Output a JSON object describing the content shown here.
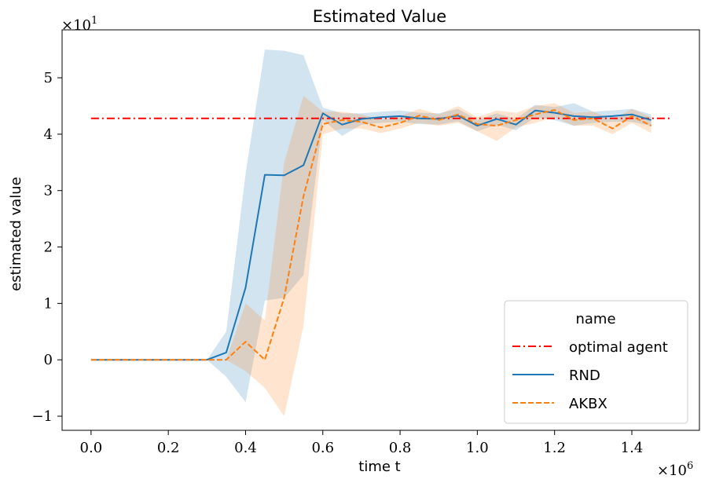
{
  "chart_data": {
    "type": "line",
    "title": "Estimated Value",
    "xlabel": "time t",
    "ylabel": "estimated value",
    "x_multiplier": "×10",
    "x_multiplier_exp": "6",
    "y_multiplier": "×10",
    "y_multiplier_exp": "1",
    "xlim": [
      -0.075,
      1.575
    ],
    "ylim": [
      -1.25,
      5.85
    ],
    "xticks": [
      0.0,
      0.2,
      0.4,
      0.6,
      0.8,
      1.0,
      1.2,
      1.4
    ],
    "xtick_labels": [
      "0.0",
      "0.2",
      "0.4",
      "0.6",
      "0.8",
      "1.0",
      "1.2",
      "1.4"
    ],
    "yticks": [
      -1,
      0,
      1,
      2,
      3,
      4,
      5
    ],
    "ytick_labels": [
      "−1",
      "0",
      "1",
      "2",
      "3",
      "4",
      "5"
    ],
    "grid": false,
    "legend": {
      "title": "name",
      "placement": "lower-right",
      "entries": [
        "optimal agent",
        "RND",
        "AKBX"
      ]
    },
    "x": [
      0.0,
      0.05,
      0.1,
      0.15,
      0.2,
      0.25,
      0.3,
      0.35,
      0.4,
      0.45,
      0.5,
      0.55,
      0.6,
      0.65,
      0.7,
      0.75,
      0.8,
      0.85,
      0.9,
      0.95,
      1.0,
      1.05,
      1.1,
      1.15,
      1.2,
      1.25,
      1.3,
      1.35,
      1.4,
      1.45
    ],
    "series": [
      {
        "name": "optimal agent",
        "color": "#ff0000",
        "style": "dashdot",
        "x": [
          0.0,
          1.5
        ],
        "values": [
          4.28,
          4.28
        ]
      },
      {
        "name": "RND",
        "color": "#1f77b4",
        "style": "solid",
        "values": [
          0,
          0,
          0,
          0,
          0,
          0,
          0,
          0.13,
          1.28,
          3.28,
          3.27,
          3.45,
          4.37,
          4.17,
          4.27,
          4.3,
          4.32,
          4.28,
          4.27,
          4.33,
          4.15,
          4.27,
          4.17,
          4.42,
          4.38,
          4.32,
          4.3,
          4.32,
          4.35,
          4.25
        ],
        "band_low": [
          0,
          0,
          0,
          0,
          0,
          0,
          0,
          -0.3,
          -0.75,
          1.05,
          1.1,
          1.5,
          4.25,
          3.97,
          4.17,
          4.2,
          4.22,
          4.18,
          4.17,
          4.23,
          4.05,
          4.17,
          4.07,
          4.3,
          4.25,
          4.15,
          4.2,
          4.22,
          4.22,
          4.15
        ],
        "band_high": [
          0,
          0,
          0,
          0,
          0,
          0,
          0,
          0.5,
          3.3,
          5.5,
          5.48,
          5.4,
          4.47,
          4.37,
          4.37,
          4.4,
          4.42,
          4.38,
          4.37,
          4.45,
          4.25,
          4.37,
          4.27,
          4.52,
          4.48,
          4.55,
          4.4,
          4.42,
          4.45,
          4.35
        ]
      },
      {
        "name": "AKBX",
        "color": "#ff7f0e",
        "style": "dashed",
        "values": [
          0,
          0,
          0,
          0,
          0,
          0,
          0,
          0,
          0.32,
          0,
          1.1,
          2.9,
          4.18,
          4.25,
          4.22,
          4.12,
          4.2,
          4.33,
          4.25,
          4.35,
          4.18,
          4.15,
          4.25,
          4.35,
          4.43,
          4.25,
          4.28,
          4.1,
          4.32,
          4.15
        ],
        "band_low": [
          0,
          0,
          0,
          0,
          0,
          0,
          0,
          0,
          -0.2,
          -0.5,
          -1.0,
          0.6,
          4.0,
          4.1,
          4.1,
          4.02,
          4.1,
          4.2,
          4.15,
          4.2,
          4.05,
          3.88,
          4.12,
          4.2,
          4.3,
          4.15,
          4.15,
          4.0,
          4.2,
          4.02
        ],
        "band_high": [
          0,
          0,
          0,
          0,
          0,
          0,
          0,
          0,
          1.0,
          0.7,
          3.5,
          4.68,
          4.4,
          4.4,
          4.35,
          4.25,
          4.32,
          4.45,
          4.35,
          4.5,
          4.3,
          4.42,
          4.38,
          4.5,
          4.55,
          4.38,
          4.4,
          4.25,
          4.45,
          4.3
        ]
      }
    ]
  }
}
